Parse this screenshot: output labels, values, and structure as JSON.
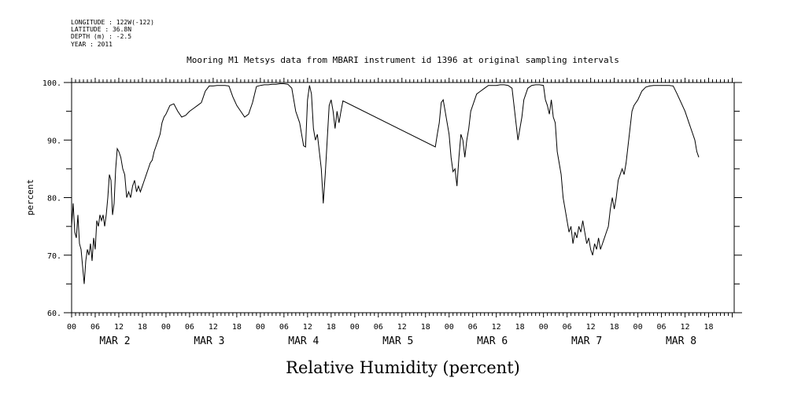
{
  "header_meta": [
    "LONGITUDE : 122W(-122)",
    "LATITUDE : 36.8N",
    "DEPTH (m) : -2.5",
    "YEAR : 2011"
  ],
  "chart_data": {
    "type": "line",
    "title": "Mooring M1 Metsys data from MBARI instrument id 1396 at original sampling intervals",
    "xlabel": "Relative Humidity (percent)",
    "ylabel": "percent",
    "ylim": [
      60,
      100
    ],
    "yticks": [
      60,
      70,
      80,
      90,
      100
    ],
    "ytick_labels": [
      "60.",
      "70.",
      "80.",
      "90.",
      "100."
    ],
    "x_unit": "hours since 00 MAR 2",
    "xlim": [
      0,
      168.5
    ],
    "hour_tick_labels": [
      "00",
      "06",
      "12",
      "18",
      "00",
      "06",
      "12",
      "18",
      "00",
      "06",
      "12",
      "18",
      "00",
      "06",
      "12",
      "18",
      "00",
      "06",
      "12",
      "18",
      "00",
      "06",
      "12",
      "18",
      "00",
      "06",
      "12",
      "18"
    ],
    "day_labels": [
      "MAR  2",
      "MAR  3",
      "MAR  4",
      "MAR  5",
      "MAR  6",
      "MAR  7",
      "MAR  8"
    ],
    "grid": false,
    "series": [
      {
        "color": "#000000",
        "points": [
          [
            0,
            75
          ],
          [
            0.4,
            79
          ],
          [
            0.8,
            74
          ],
          [
            1.2,
            73
          ],
          [
            1.6,
            77
          ],
          [
            2,
            72
          ],
          [
            2.4,
            71
          ],
          [
            2.8,
            68
          ],
          [
            3.2,
            65
          ],
          [
            3.6,
            69
          ],
          [
            4,
            71
          ],
          [
            4.4,
            70
          ],
          [
            4.8,
            72
          ],
          [
            5.2,
            69
          ],
          [
            5.6,
            73
          ],
          [
            6,
            71
          ],
          [
            6.4,
            76
          ],
          [
            6.8,
            75
          ],
          [
            7.2,
            77
          ],
          [
            7.6,
            76
          ],
          [
            8,
            77
          ],
          [
            8.4,
            75
          ],
          [
            8.8,
            77
          ],
          [
            9.2,
            80
          ],
          [
            9.6,
            84
          ],
          [
            10,
            83
          ],
          [
            10.4,
            77
          ],
          [
            10.8,
            79
          ],
          [
            11.2,
            85
          ],
          [
            11.6,
            88.5
          ],
          [
            12,
            88
          ],
          [
            12.5,
            87
          ],
          [
            13,
            85
          ],
          [
            13.5,
            84
          ],
          [
            14,
            80
          ],
          [
            14.5,
            81
          ],
          [
            15,
            80
          ],
          [
            15.5,
            82
          ],
          [
            16,
            83
          ],
          [
            16.5,
            81
          ],
          [
            17,
            82
          ],
          [
            17.5,
            81
          ],
          [
            18,
            82
          ],
          [
            18.5,
            83
          ],
          [
            19,
            84
          ],
          [
            19.5,
            85
          ],
          [
            20,
            86
          ],
          [
            20.5,
            86.5
          ],
          [
            21,
            88
          ],
          [
            21.5,
            89
          ],
          [
            22,
            90
          ],
          [
            22.5,
            91
          ],
          [
            23,
            93
          ],
          [
            23.5,
            94
          ],
          [
            24,
            94.5
          ],
          [
            25,
            96
          ],
          [
            26,
            96.3
          ],
          [
            27,
            95
          ],
          [
            28,
            94
          ],
          [
            29,
            94.3
          ],
          [
            30,
            95
          ],
          [
            31,
            95.5
          ],
          [
            32,
            96
          ],
          [
            33,
            96.5
          ],
          [
            34,
            98.5
          ],
          [
            35,
            99.4
          ],
          [
            36,
            99.4
          ],
          [
            37,
            99.5
          ],
          [
            38,
            99.5
          ],
          [
            39,
            99.5
          ],
          [
            40,
            99.4
          ],
          [
            41,
            97.5
          ],
          [
            42,
            96
          ],
          [
            43,
            95
          ],
          [
            44,
            94
          ],
          [
            45,
            94.5
          ],
          [
            46,
            96.5
          ],
          [
            47,
            99.3
          ],
          [
            48,
            99.5
          ],
          [
            49,
            99.6
          ],
          [
            50,
            99.6
          ],
          [
            51,
            99.7
          ],
          [
            52,
            99.7
          ],
          [
            53,
            99.8
          ],
          [
            54,
            99.8
          ],
          [
            55,
            99.7
          ],
          [
            56,
            99
          ],
          [
            57,
            95
          ],
          [
            58,
            93
          ],
          [
            59,
            89
          ],
          [
            59.5,
            88.8
          ],
          [
            60,
            97
          ],
          [
            60.5,
            99.5
          ],
          [
            61,
            98
          ],
          [
            61.5,
            92
          ],
          [
            62,
            90
          ],
          [
            62.5,
            91
          ],
          [
            63,
            88
          ],
          [
            63.5,
            85
          ],
          [
            64,
            79
          ],
          [
            64.5,
            84
          ],
          [
            65,
            90
          ],
          [
            65.5,
            96
          ],
          [
            66,
            97
          ],
          [
            66.5,
            95
          ],
          [
            67,
            92
          ],
          [
            67.5,
            95
          ],
          [
            68,
            93
          ],
          [
            68.5,
            95
          ],
          [
            69,
            96.8
          ],
          [
            92.5,
            88.8
          ],
          [
            93,
            91
          ],
          [
            93.5,
            93
          ],
          [
            94,
            96.5
          ],
          [
            94.5,
            97
          ],
          [
            95,
            95
          ],
          [
            95.5,
            93
          ],
          [
            96,
            91
          ],
          [
            96.5,
            87
          ],
          [
            97,
            84.5
          ],
          [
            97.5,
            85
          ],
          [
            98,
            82
          ],
          [
            98.5,
            87
          ],
          [
            99,
            91
          ],
          [
            99.5,
            90
          ],
          [
            100,
            87
          ],
          [
            100.5,
            90
          ],
          [
            101,
            92
          ],
          [
            101.5,
            95
          ],
          [
            102,
            96
          ],
          [
            103,
            98
          ],
          [
            104,
            98.5
          ],
          [
            105,
            99
          ],
          [
            106,
            99.5
          ],
          [
            107,
            99.5
          ],
          [
            108,
            99.5
          ],
          [
            109,
            99.6
          ],
          [
            110,
            99.6
          ],
          [
            111,
            99.5
          ],
          [
            112,
            99
          ],
          [
            112.5,
            96
          ],
          [
            113,
            93
          ],
          [
            113.5,
            90
          ],
          [
            114,
            92
          ],
          [
            114.5,
            94
          ],
          [
            115,
            97
          ],
          [
            116,
            99
          ],
          [
            117,
            99.5
          ],
          [
            118,
            99.6
          ],
          [
            119,
            99.6
          ],
          [
            120,
            99.5
          ],
          [
            120.5,
            97
          ],
          [
            121,
            96
          ],
          [
            121.5,
            94.5
          ],
          [
            122,
            97
          ],
          [
            122.5,
            94
          ],
          [
            123,
            93
          ],
          [
            123.5,
            88
          ],
          [
            124,
            86
          ],
          [
            124.5,
            84
          ],
          [
            125,
            80
          ],
          [
            125.5,
            78
          ],
          [
            126,
            76
          ],
          [
            126.5,
            74
          ],
          [
            127,
            75
          ],
          [
            127.5,
            72
          ],
          [
            128,
            74
          ],
          [
            128.5,
            73
          ],
          [
            129,
            75
          ],
          [
            129.5,
            74
          ],
          [
            130,
            76
          ],
          [
            130.5,
            74
          ],
          [
            131,
            72
          ],
          [
            131.5,
            73
          ],
          [
            132,
            71
          ],
          [
            132.5,
            70
          ],
          [
            133,
            72
          ],
          [
            133.5,
            71
          ],
          [
            134,
            73
          ],
          [
            134.5,
            71
          ],
          [
            135,
            72
          ],
          [
            135.5,
            73
          ],
          [
            136,
            74
          ],
          [
            136.5,
            75
          ],
          [
            137,
            78
          ],
          [
            137.5,
            80
          ],
          [
            138,
            78
          ],
          [
            138.5,
            80
          ],
          [
            139,
            83
          ],
          [
            139.5,
            84
          ],
          [
            140,
            85
          ],
          [
            140.5,
            84
          ],
          [
            141,
            86
          ],
          [
            141.5,
            89
          ],
          [
            142,
            92
          ],
          [
            142.5,
            95
          ],
          [
            143,
            96
          ],
          [
            144,
            97
          ],
          [
            145,
            98.5
          ],
          [
            146,
            99.2
          ],
          [
            147,
            99.4
          ],
          [
            148,
            99.5
          ],
          [
            149,
            99.5
          ],
          [
            150,
            99.5
          ],
          [
            151,
            99.5
          ],
          [
            152,
            99.5
          ],
          [
            153,
            99.4
          ],
          [
            154,
            98
          ],
          [
            155,
            96.5
          ],
          [
            156,
            95
          ],
          [
            157,
            93
          ],
          [
            157.5,
            92
          ],
          [
            158,
            91
          ],
          [
            158.5,
            90
          ],
          [
            159,
            88
          ],
          [
            159.5,
            87
          ]
        ]
      }
    ]
  }
}
